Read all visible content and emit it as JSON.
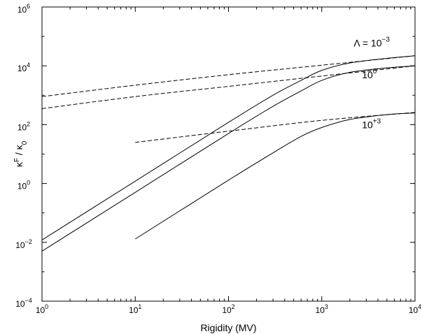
{
  "chart_data": {
    "type": "line",
    "title": "",
    "xlabel": "Rigidity (MV)",
    "ylabel_main": "κ",
    "ylabel_main_sup": "F",
    "ylabel_sep": " / ",
    "ylabel_denom": "κ",
    "ylabel_denom_sub": "0",
    "xscale": "log",
    "yscale": "log",
    "xlim": [
      1,
      10000
    ],
    "ylim": [
      0.0001,
      1000000
    ],
    "grid": false,
    "x_ticks": [
      {
        "base": "10",
        "exp": "0",
        "value": 1
      },
      {
        "base": "10",
        "exp": "1",
        "value": 10
      },
      {
        "base": "10",
        "exp": "2",
        "value": 100
      },
      {
        "base": "10",
        "exp": "3",
        "value": 1000
      },
      {
        "base": "10",
        "exp": "4",
        "value": 10000
      }
    ],
    "y_ticks": [
      {
        "base": "10",
        "exp": "−4",
        "value": 0.0001
      },
      {
        "base": "10",
        "exp": "−2",
        "value": 0.01
      },
      {
        "base": "10",
        "exp": "0",
        "value": 1
      },
      {
        "base": "10",
        "exp": "2",
        "value": 100
      },
      {
        "base": "10",
        "exp": "4",
        "value": 10000
      },
      {
        "base": "10",
        "exp": "6",
        "value": 1000000
      }
    ],
    "series": [
      {
        "style": "solid",
        "x": [
          1,
          10,
          100,
          300,
          600,
          1000,
          2000,
          5000,
          10000
        ],
        "y": [
          0.012,
          1.2,
          120,
          1000,
          3200,
          7000,
          12500,
          18000,
          22000
        ]
      },
      {
        "style": "solid",
        "x": [
          1,
          10,
          100,
          300,
          600,
          1000,
          2000,
          5000,
          10000
        ],
        "y": [
          0.005,
          0.5,
          50,
          420,
          1400,
          3200,
          6000,
          8500,
          10000
        ]
      },
      {
        "style": "solid",
        "x": [
          10,
          100,
          300,
          600,
          1000,
          2000,
          5000,
          10000
        ],
        "y": [
          0.013,
          1.3,
          11,
          40,
          80,
          150,
          220,
          250
        ]
      },
      {
        "style": "dashed",
        "x": [
          1,
          10,
          100,
          1000,
          10000
        ],
        "y": [
          900,
          2200,
          5000,
          10500,
          22000
        ]
      },
      {
        "style": "dashed",
        "x": [
          1,
          10,
          100,
          1000,
          10000
        ],
        "y": [
          350,
          900,
          2000,
          4500,
          10000
        ]
      },
      {
        "style": "dashed",
        "x": [
          10,
          100,
          1000,
          10000
        ],
        "y": [
          25,
          60,
          140,
          260
        ]
      }
    ],
    "annotations": [
      {
        "id": "lambda-neg3",
        "prefix": "Λ = ",
        "base": "10",
        "exp": "−3",
        "at_x": 2200,
        "at_y": 46000
      },
      {
        "id": "lambda-0",
        "prefix": "",
        "base": "10",
        "exp": "0",
        "at_x": 2700,
        "at_y": 3800
      },
      {
        "id": "lambda-pos3",
        "prefix": "",
        "base": "10",
        "exp": "+3",
        "at_x": 2700,
        "at_y": 75
      }
    ]
  }
}
